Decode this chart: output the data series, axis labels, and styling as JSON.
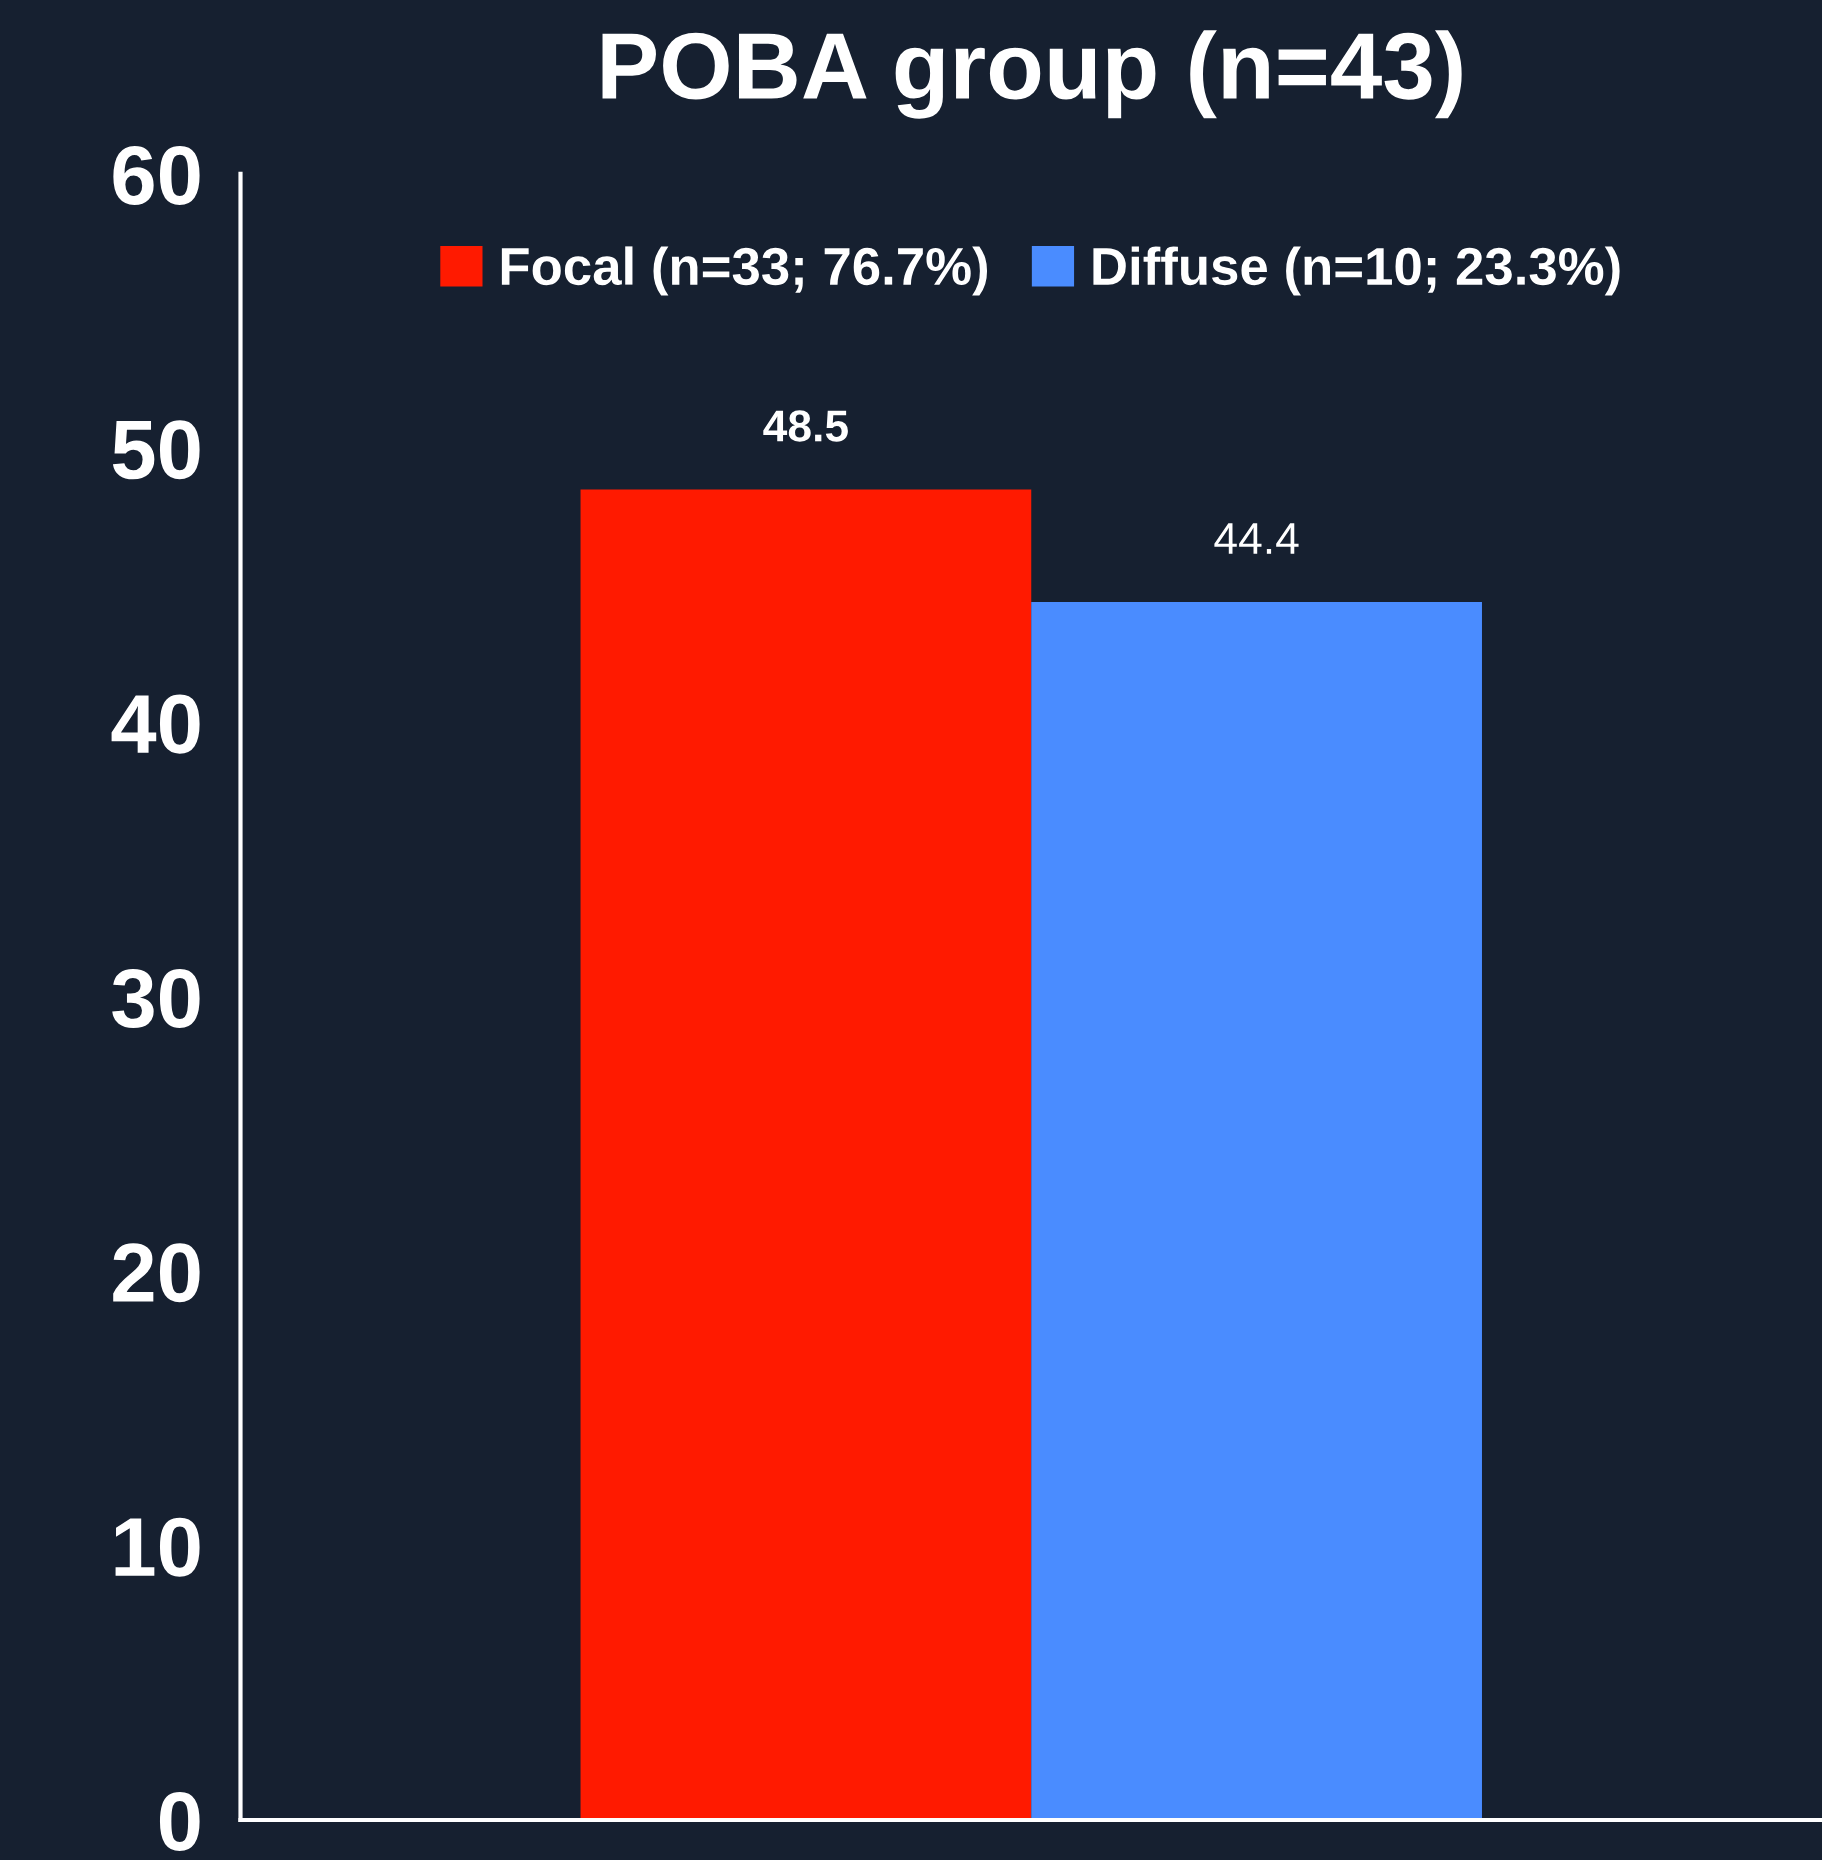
{
  "chart_data": {
    "type": "bar",
    "title": "POBA group (n=43)",
    "categories": [
      null
    ],
    "series": [
      {
        "name": "Focal (n=33; 76.7%)",
        "color": "#ff1a00",
        "values": [
          48.5
        ]
      },
      {
        "name": "Diffuse (n=10; 23.3%)",
        "color": "#4a8cff",
        "values": [
          44.4
        ]
      }
    ],
    "ylim": [
      0,
      60
    ],
    "yticks": [
      0,
      10,
      20,
      30,
      40,
      50,
      60
    ],
    "grid": false,
    "legend": "top",
    "data_labels": true
  }
}
